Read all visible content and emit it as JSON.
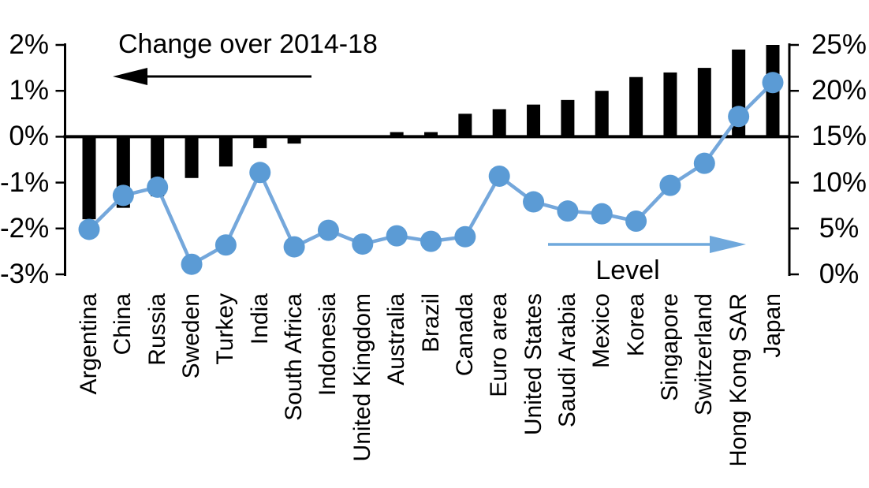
{
  "figure": {
    "left_series_label": "Change over 2014-18",
    "right_series_label": "Level"
  },
  "left_axis": {
    "tick_labels": [
      "2%",
      "1%",
      "0%",
      "-1%",
      "-2%",
      "-3%"
    ],
    "tick_values": [
      2,
      1,
      0,
      -1,
      -2,
      -3
    ]
  },
  "right_axis": {
    "tick_labels": [
      "25%",
      "20%",
      "15%",
      "10%",
      "5%",
      "0%"
    ],
    "tick_values": [
      25,
      20,
      15,
      10,
      5,
      0
    ]
  },
  "colors": {
    "bar": "#000000",
    "line": "#74a7db",
    "marker": "#5b9bd5",
    "axis": "#000000",
    "left_arrow": "#000000",
    "right_arrow": "#6fa8dc"
  },
  "chart_data": {
    "type": "bar",
    "subtype": "dual-axis bar + line with markers",
    "categories": [
      "Argentina",
      "China",
      "Russia",
      "Sweden",
      "Turkey",
      "India",
      "South Africa",
      "Indonesia",
      "United Kingdom",
      "Australia",
      "Brazil",
      "Canada",
      "Euro area",
      "United States",
      "Saudi Arabia",
      "Mexico",
      "Korea",
      "Singapore",
      "Switzerland",
      "Hong Kong SAR",
      "Japan"
    ],
    "series": [
      {
        "name": "Change over 2014-18",
        "type": "bar",
        "axis": "left",
        "unit": "percentage points",
        "values": [
          -1.8,
          -1.55,
          -1.3,
          -0.9,
          -0.65,
          -0.25,
          -0.15,
          0,
          0,
          0.1,
          0.1,
          0.5,
          0.6,
          0.7,
          0.8,
          1.0,
          1.3,
          1.4,
          1.5,
          1.9,
          2.0
        ]
      },
      {
        "name": "Level",
        "type": "line",
        "axis": "right",
        "unit": "percent",
        "values": [
          4.9,
          8.6,
          9.5,
          1.1,
          3.2,
          11.1,
          3.0,
          4.8,
          3.3,
          4.2,
          3.6,
          4.1,
          10.7,
          7.9,
          6.9,
          6.6,
          5.8,
          9.7,
          12.1,
          17.2,
          20.9
        ]
      }
    ],
    "left_ylim": [
      -3,
      2
    ],
    "right_ylim": [
      0,
      25
    ],
    "grid": false,
    "legend_position": "in-plot arrows pointing toward the axis each series is read on"
  }
}
